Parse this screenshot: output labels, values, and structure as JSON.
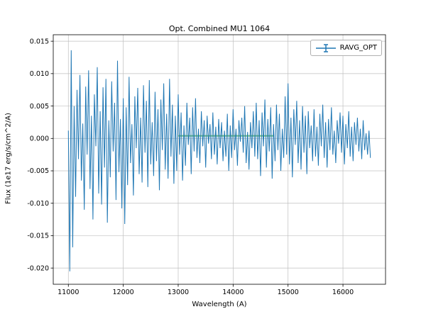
{
  "chart_data": {
    "type": "line",
    "title": "Opt. Combined MU1 1064",
    "xlabel": "Wavelength (A)",
    "ylabel": "Flux (1e17 erg/s/cm^2/A)",
    "legend": {
      "position": "upper right",
      "entries": [
        "RAVG_OPT"
      ]
    },
    "grid": true,
    "xlim": [
      10725,
      16775
    ],
    "ylim": [
      -0.0225,
      0.016
    ],
    "xticks": [
      11000,
      12000,
      13000,
      14000,
      15000,
      16000
    ],
    "yticks": [
      -0.02,
      -0.015,
      -0.01,
      -0.005,
      0.0,
      0.005,
      0.01,
      0.015
    ],
    "series_name": "RAVG_OPT",
    "series_color": "#1f77b4",
    "x_start": 11000,
    "x_step": 26.3158,
    "value_scale": 0.001,
    "values": [
      1.2,
      -20.5,
      13.6,
      -16.8,
      5.0,
      -9.0,
      7.5,
      -3.2,
      9.8,
      -6.5,
      2.3,
      -11.0,
      8.0,
      -2.5,
      10.5,
      -7.8,
      3.5,
      -12.5,
      6.8,
      -1.2,
      11.0,
      -8.5,
      4.2,
      -10.2,
      7.9,
      -4.5,
      9.2,
      -13.0,
      2.8,
      -6.0,
      8.8,
      -2.0,
      5.5,
      -9.5,
      12.0,
      -5.2,
      3.0,
      -10.8,
      6.2,
      -13.2,
      4.8,
      -7.2,
      9.5,
      -3.8,
      2.2,
      -8.8,
      6.5,
      -1.5,
      7.8,
      -5.5,
      3.2,
      -6.8,
      8.2,
      -2.2,
      5.8,
      -7.5,
      9.0,
      -4.0,
      2.5,
      -5.8,
      7.2,
      -3.5,
      4.5,
      -8.0,
      6.0,
      -1.8,
      8.5,
      -4.8,
      3.8,
      -6.2,
      9.2,
      -2.8,
      5.2,
      -7.0,
      3.5,
      -5.0,
      6.8,
      -2.5,
      4.0,
      -6.5,
      2.0,
      -4.2,
      5.5,
      -1.0,
      3.2,
      -5.5,
      4.8,
      -2.0,
      6.2,
      -3.0,
      1.5,
      -3.8,
      4.2,
      -1.2,
      2.8,
      -4.5,
      3.5,
      -0.8,
      2.2,
      -3.2,
      4.0,
      -2.5,
      1.8,
      -4.0,
      3.0,
      -1.5,
      2.5,
      -3.5,
      1.2,
      -2.8,
      3.8,
      -5.0,
      2.0,
      -3.0,
      4.5,
      -1.8,
      1.5,
      -4.2,
      2.8,
      -0.5,
      3.2,
      -2.2,
      5.0,
      -3.8,
      1.0,
      -4.8,
      2.5,
      -1.5,
      4.2,
      -2.8,
      5.5,
      -3.2,
      2.8,
      -5.8,
      4.0,
      -1.2,
      6.0,
      -4.5,
      3.0,
      -2.0,
      4.8,
      -6.2,
      2.2,
      -3.5,
      5.2,
      -1.8,
      3.8,
      -5.0,
      1.5,
      -3.0,
      6.5,
      -2.5,
      8.5,
      -4.0,
      3.2,
      -6.0,
      4.5,
      -1.0,
      5.8,
      -3.8,
      2.8,
      -4.8,
      5.0,
      -2.2,
      3.5,
      -5.5,
      4.2,
      -1.5,
      2.0,
      -3.5,
      4.5,
      -2.8,
      1.8,
      -4.2,
      3.8,
      -1.2,
      5.2,
      -3.0,
      2.5,
      -4.5,
      3.0,
      -1.8,
      4.8,
      -2.5,
      1.2,
      -3.8,
      2.8,
      -0.8,
      4.0,
      -2.2,
      3.5,
      -4.0,
      2.2,
      -1.5,
      4.2,
      -2.8,
      1.8,
      -3.5,
      2.5,
      -1.0,
      3.2,
      -2.0,
      1.5,
      -3.2,
      2.8,
      -1.8,
      0.8,
      -2.5,
      1.2,
      -3.0
    ],
    "overlay": {
      "name": "smoothed-mean-line",
      "x": [
        13000,
        14750
      ],
      "y": [
        0.0004,
        0.0004
      ],
      "color": "#74c476"
    },
    "grid_color": "#b0b0b0",
    "spine_color": "#000000"
  }
}
